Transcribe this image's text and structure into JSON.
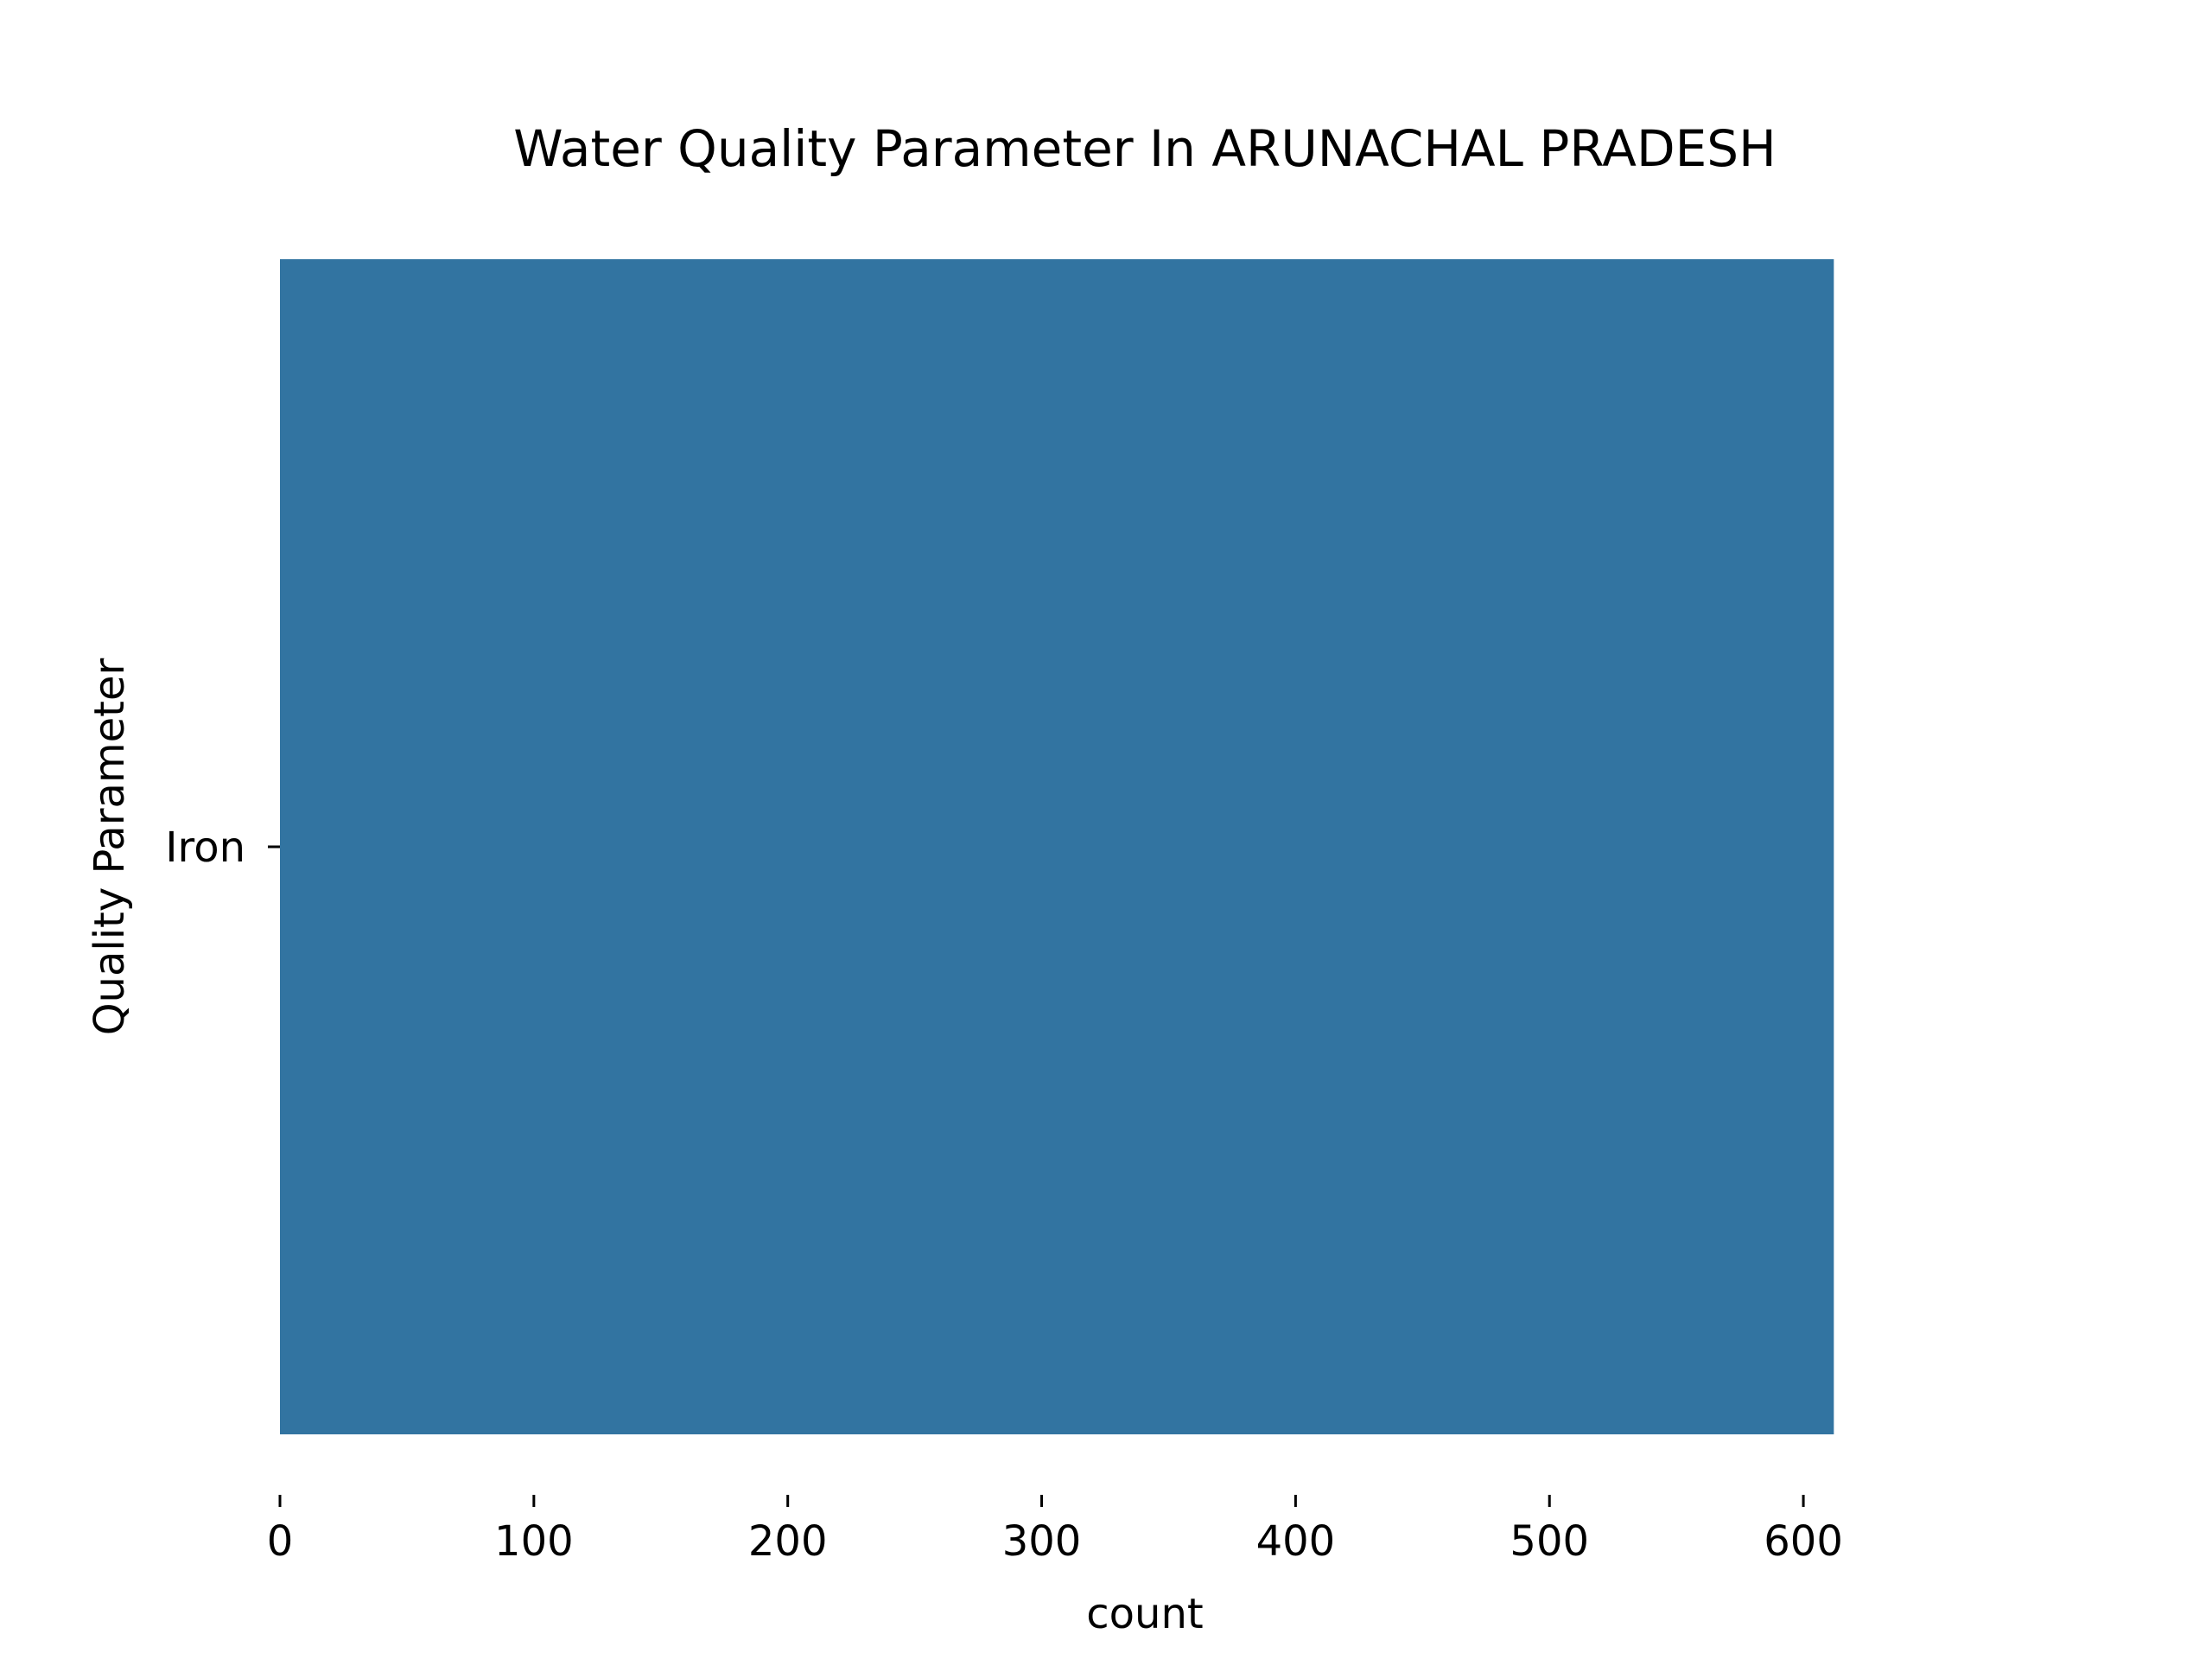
{
  "chart_data": {
    "type": "bar",
    "orientation": "horizontal",
    "title": "Water Quality Parameter In ARUNACHAL PRADESH",
    "xlabel": "count",
    "ylabel": "Quality Parameter",
    "categories": [
      "Iron"
    ],
    "values": [
      612
    ],
    "xlim": [
      0,
      650
    ],
    "xticks": [
      0,
      100,
      200,
      300,
      400,
      500,
      600
    ],
    "bar_color": "#3274a1",
    "grid": false
  }
}
